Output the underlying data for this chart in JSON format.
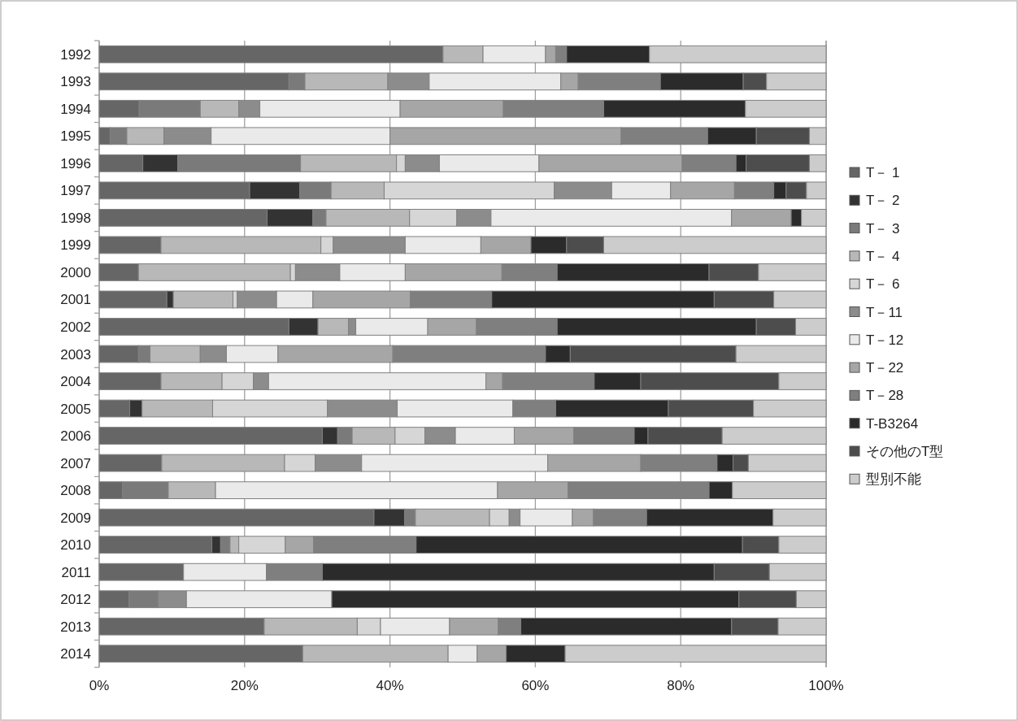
{
  "chart_data": {
    "type": "bar",
    "orientation": "horizontal",
    "stacked": true,
    "categories": [
      "1992",
      "1993",
      "1994",
      "1995",
      "1996",
      "1997",
      "1998",
      "1999",
      "2000",
      "2001",
      "2002",
      "2003",
      "2004",
      "2005",
      "2006",
      "2007",
      "2008",
      "2009",
      "2010",
      "2011",
      "2012",
      "2013",
      "2014"
    ],
    "series": [
      {
        "name": "T－ 1",
        "color": "#666666",
        "values": [
          47.3,
          26.1,
          5.5,
          1.5,
          6.0,
          20.7,
          23.1,
          8.5,
          5.4,
          9.3,
          26.1,
          5.4,
          8.5,
          4.2,
          30.7,
          8.6,
          3.2,
          37.8,
          15.5,
          11.6,
          4.1,
          22.7,
          28.0
        ]
      },
      {
        "name": "T－ 2",
        "color": "#333333",
        "values": [
          null,
          null,
          null,
          null,
          4.8,
          6.9,
          6.3,
          null,
          null,
          0.9,
          4.0,
          null,
          null,
          1.7,
          2.1,
          null,
          null,
          4.2,
          1.2,
          null,
          null,
          null,
          null
        ]
      },
      {
        "name": "T－ 3",
        "color": "#7a7a7a",
        "values": [
          null,
          2.2,
          8.4,
          2.3,
          16.9,
          4.3,
          1.8,
          null,
          null,
          null,
          null,
          1.6,
          null,
          null,
          2.0,
          null,
          6.3,
          1.5,
          1.3,
          null,
          4.0,
          null,
          null
        ]
      },
      {
        "name": "T－ 4",
        "color": "#b8b8b8",
        "values": [
          5.5,
          11.4,
          5.3,
          5.1,
          13.2,
          7.3,
          11.5,
          22.0,
          20.9,
          8.2,
          4.2,
          6.9,
          8.4,
          9.7,
          5.9,
          16.9,
          6.5,
          10.2,
          1.2,
          null,
          null,
          12.8,
          20.0
        ]
      },
      {
        "name": "T－ 6",
        "color": "#d6d6d6",
        "values": [
          null,
          null,
          null,
          null,
          1.2,
          23.4,
          6.5,
          1.7,
          0.7,
          0.6,
          null,
          null,
          4.3,
          15.8,
          4.1,
          4.2,
          null,
          2.7,
          6.4,
          null,
          null,
          3.2,
          null
        ]
      },
      {
        "name": "T－11",
        "color": "#8c8c8c",
        "values": [
          null,
          5.7,
          2.9,
          6.5,
          4.7,
          7.9,
          4.7,
          9.9,
          6.1,
          5.4,
          1.0,
          3.6,
          2.1,
          9.6,
          4.2,
          6.4,
          null,
          1.5,
          null,
          null,
          3.9,
          null,
          null
        ]
      },
      {
        "name": "T－12",
        "color": "#eaeaea",
        "values": [
          8.6,
          18.1,
          19.3,
          24.6,
          13.7,
          8.1,
          33.1,
          10.4,
          9.0,
          5.0,
          9.9,
          7.1,
          29.9,
          15.9,
          8.1,
          25.6,
          38.8,
          7.2,
          null,
          11.4,
          20.0,
          9.5,
          4.0
        ]
      },
      {
        "name": "T－22",
        "color": "#a6a6a6",
        "values": [
          1.4,
          2.4,
          14.2,
          31.8,
          19.7,
          8.8,
          8.2,
          6.9,
          13.3,
          13.4,
          6.7,
          15.8,
          2.3,
          null,
          8.2,
          12.8,
          9.7,
          2.9,
          3.9,
          null,
          null,
          6.7,
          4.0
        ]
      },
      {
        "name": "T－28",
        "color": "#7f7f7f",
        "values": [
          1.5,
          11.3,
          13.8,
          11.9,
          7.4,
          5.4,
          null,
          null,
          7.6,
          11.2,
          11.1,
          21.0,
          12.6,
          5.9,
          8.3,
          10.5,
          19.4,
          7.3,
          14.1,
          7.7,
          null,
          3.1,
          null
        ]
      },
      {
        "name": "T-B3264",
        "color": "#2b2b2b",
        "values": [
          11.4,
          11.4,
          19.5,
          6.7,
          1.4,
          1.7,
          1.4,
          4.9,
          20.9,
          30.6,
          27.4,
          3.4,
          6.4,
          15.5,
          1.9,
          2.2,
          3.2,
          17.4,
          44.9,
          53.9,
          56.0,
          29.0,
          8.1
        ]
      },
      {
        "name": "その他のT型",
        "color": "#4d4d4d",
        "values": [
          null,
          3.2,
          null,
          7.3,
          8.7,
          2.8,
          null,
          5.1,
          6.8,
          8.2,
          5.4,
          22.8,
          19.0,
          11.7,
          10.2,
          2.1,
          null,
          null,
          5.0,
          7.6,
          7.9,
          6.4,
          null
        ]
      },
      {
        "name": "型別不能",
        "color": "#cccccc",
        "values": [
          24.3,
          8.2,
          11.1,
          2.3,
          2.3,
          2.7,
          3.4,
          30.6,
          9.3,
          7.2,
          4.2,
          12.4,
          6.5,
          10.0,
          14.3,
          10.7,
          12.9,
          7.3,
          6.5,
          7.8,
          4.1,
          6.6,
          35.9
        ]
      }
    ],
    "xlim": [
      0,
      100
    ],
    "xticks": [
      {
        "value": 0,
        "label": "0%"
      },
      {
        "value": 20,
        "label": "20%"
      },
      {
        "value": 40,
        "label": "40%"
      },
      {
        "value": 60,
        "label": "60%"
      },
      {
        "value": 80,
        "label": "80%"
      },
      {
        "value": 100,
        "label": "100%"
      }
    ],
    "grid": "x",
    "legend": "right"
  }
}
